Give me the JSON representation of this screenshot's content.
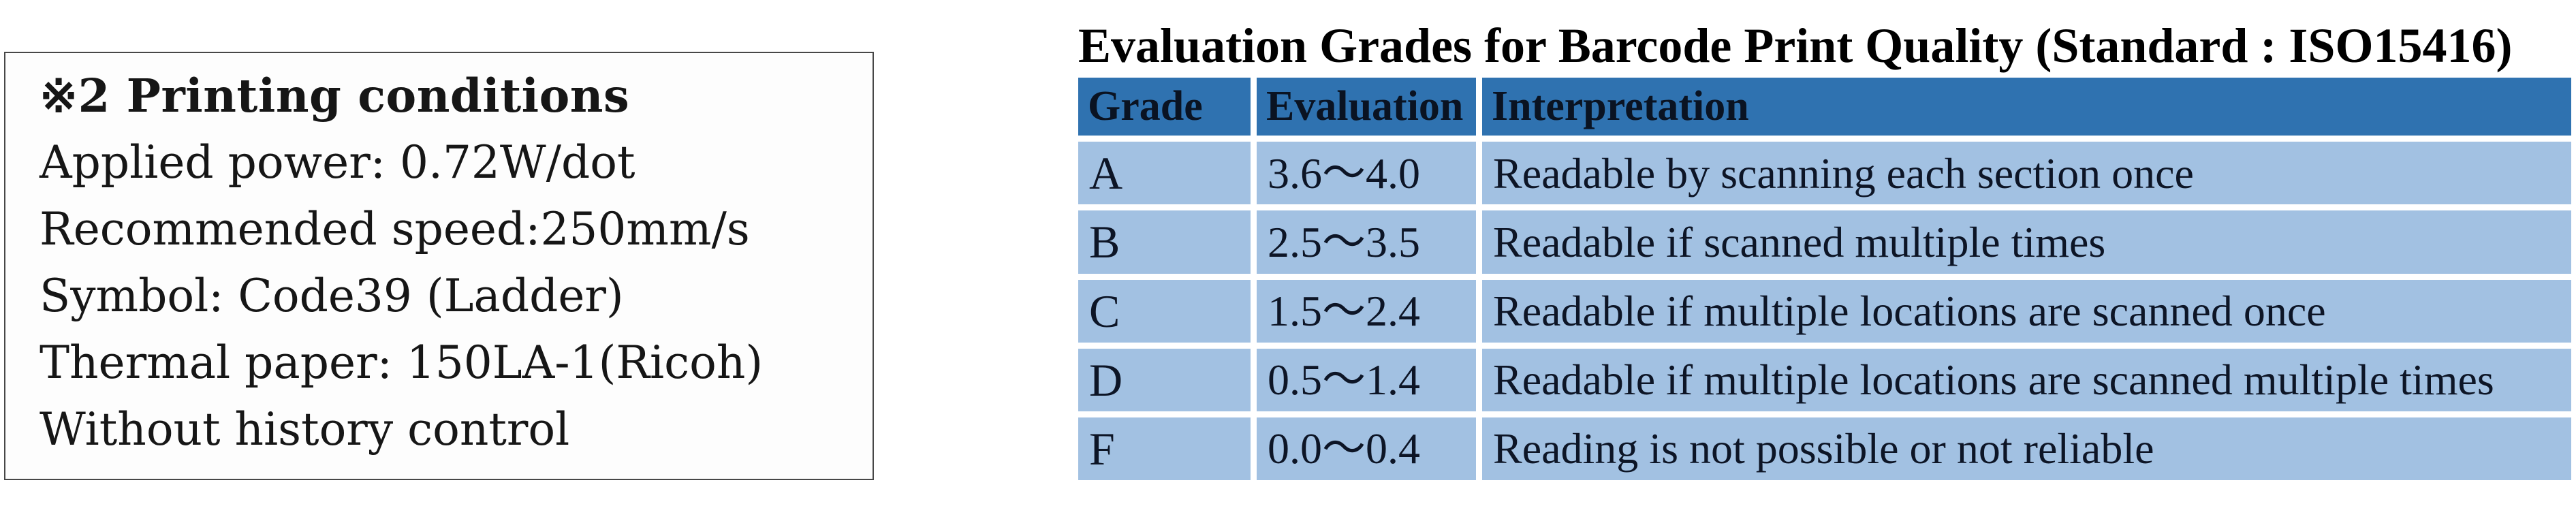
{
  "note_box": {
    "title": "※2 Printing conditions",
    "lines": [
      "Applied power: 0.72W/dot",
      "Recommended speed:250mm/s",
      "Symbol: Code39 (Ladder)",
      "Thermal paper: 150LA-1(Ricoh)",
      "Without history control"
    ]
  },
  "grade_table": {
    "title": "Evaluation Grades for Barcode Print Quality (Standard : ISO15416)",
    "columns": [
      "Grade",
      "Evaluation",
      "Interpretation"
    ],
    "rows": [
      {
        "grade": "A",
        "evaluation": "3.6～4.0",
        "interpretation": "Readable by scanning each section once"
      },
      {
        "grade": "B",
        "evaluation": "2.5～3.5",
        "interpretation": "Readable if scanned multiple times"
      },
      {
        "grade": "C",
        "evaluation": "1.5～2.4",
        "interpretation": "Readable if multiple locations are scanned once"
      },
      {
        "grade": "D",
        "evaluation": "0.5～1.4",
        "interpretation": "Readable if multiple locations are scanned multiple times"
      },
      {
        "grade": "F",
        "evaluation": "0.0～0.4",
        "interpretation": "Reading is not possible or not reliable"
      }
    ],
    "colors": {
      "header_bg": "#2f72b0",
      "row_bg": "#a2c1e2",
      "header_text": "#0a1322",
      "cell_text": "#0d1526"
    }
  }
}
